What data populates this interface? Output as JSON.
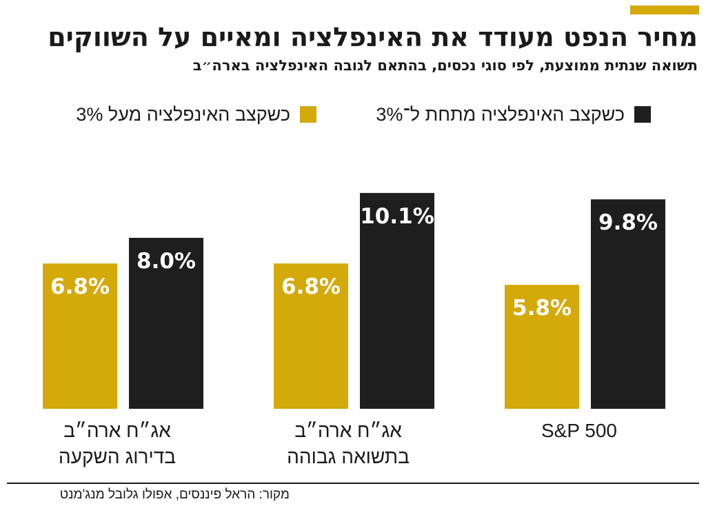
{
  "header": {
    "title": "מחיר הנפט מעודד את האינפלציה ומאיים על השווקים",
    "subtitle": "תשואה שנתית ממוצעת, לפי סוגי נכסים, בהתאם לגובה האינפלציה בארה״ב"
  },
  "legend": {
    "below": "כשקצב האינפלציה מתחת ל־3%",
    "above": "כשקצב האינפלציה מעל 3%"
  },
  "source": "מקור: הראל פיננסים, אפולו גלובל מנג'מנט",
  "colors": {
    "above": "#d4a90a",
    "below": "#1f1e1e",
    "accent": "#d4a90a"
  },
  "chart_data": {
    "type": "bar",
    "title": "מחיר הנפט מעודד את האינפלציה ומאיים על השווקים",
    "subtitle": "תשואה שנתית ממוצעת, לפי סוגי נכסים, בהתאם לגובה האינפלציה בארה״ב",
    "categories": [
      [
        "אג״ח ארה״ב",
        "בדירוג השקעה"
      ],
      [
        "אג״ח ארה״ב",
        "בתשואה גבוהה"
      ],
      [
        "S&P 500"
      ]
    ],
    "series": [
      {
        "name": "כשקצב האינפלציה מעל 3%",
        "values": [
          6.8,
          6.8,
          5.8
        ],
        "labels": [
          "6.8%",
          "6.8%",
          "5.8%"
        ],
        "color": "#d4a90a"
      },
      {
        "name": "כשקצב האינפלציה מתחת ל־3%",
        "values": [
          8.0,
          10.1,
          9.8
        ],
        "labels": [
          "8.0%",
          "10.1%",
          "9.8%"
        ],
        "color": "#1f1e1e"
      }
    ],
    "ylim": [
      0,
      12
    ],
    "grid": false,
    "legend_position": "top"
  }
}
